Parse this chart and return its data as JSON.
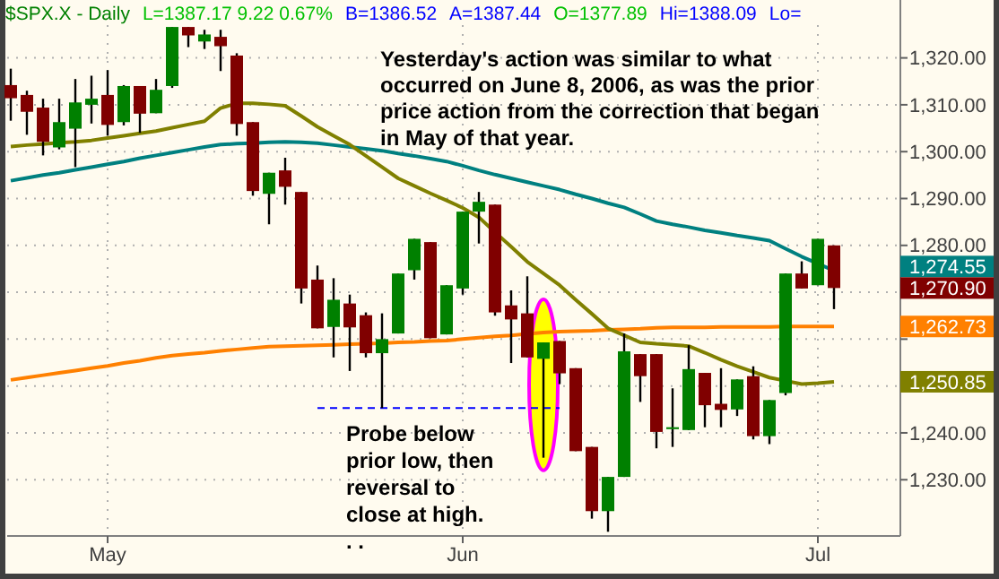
{
  "chart_data": {
    "type": "candlestick",
    "title": "$SPX.X - Daily",
    "categories": [
      null,
      null,
      null,
      null,
      null,
      null,
      "May",
      null,
      null,
      null,
      null,
      null,
      null,
      null,
      null,
      null,
      null,
      null,
      null,
      null,
      null,
      null,
      null,
      null,
      null,
      null,
      null,
      null,
      "Jun",
      null,
      null,
      null,
      null,
      null,
      null,
      null,
      null,
      null,
      null,
      null,
      null,
      null,
      null,
      null,
      null,
      null,
      null,
      null,
      null,
      null,
      "Jul",
      null
    ],
    "ohlc": [
      [
        1314.2,
        1317.7,
        1306.6,
        1311.4
      ],
      [
        1312.1,
        1313.0,
        1303.6,
        1308.5
      ],
      [
        1309.4,
        1311.3,
        1299.2,
        1302.1
      ],
      [
        1300.9,
        1311.3,
        1300.5,
        1306.3
      ],
      [
        1304.9,
        1315.5,
        1296.7,
        1310.5
      ],
      [
        1310.0,
        1316.2,
        1306.0,
        1311.3
      ],
      [
        1312.1,
        1317.4,
        1303.4,
        1305.7
      ],
      [
        1306.3,
        1314.2,
        1305.6,
        1314.0
      ],
      [
        1314.0,
        1314.0,
        1304.0,
        1308.1
      ],
      [
        1308.2,
        1315.5,
        1308.2,
        1313.2
      ],
      [
        1314.0,
        1326.6,
        1313.6,
        1326.6
      ],
      [
        1326.6,
        1326.6,
        1322.3,
        1324.8
      ],
      [
        1323.5,
        1326.0,
        1321.9,
        1325.0
      ],
      [
        1324.5,
        1326.0,
        1317.2,
        1322.5
      ],
      [
        1320.5,
        1321.0,
        1303.4,
        1305.9
      ],
      [
        1306.3,
        1306.3,
        1290.6,
        1291.6
      ],
      [
        1291.0,
        1295.5,
        1284.5,
        1295.5
      ],
      [
        1296.0,
        1298.7,
        1288.7,
        1292.5
      ],
      [
        1291.4,
        1291.4,
        1267.6,
        1270.8
      ],
      [
        1272.7,
        1275.7,
        1262.3,
        1262.3
      ],
      [
        1262.6,
        1273.0,
        1256.1,
        1268.4
      ],
      [
        1267.6,
        1269.5,
        1253.2,
        1262.5
      ],
      [
        1265.1,
        1265.7,
        1256.1,
        1257.0
      ],
      [
        1257.0,
        1265.5,
        1245.3,
        1260.0
      ],
      [
        1261.2,
        1274.0,
        1261.2,
        1274.0
      ],
      [
        1274.7,
        1281.4,
        1272.7,
        1281.4
      ],
      [
        1280.7,
        1280.7,
        1260.2,
        1260.2
      ],
      [
        1261.0,
        1271.5,
        1261.0,
        1271.5
      ],
      [
        1270.8,
        1287.2,
        1269.5,
        1287.2
      ],
      [
        1287.2,
        1291.4,
        1280.4,
        1289.3
      ],
      [
        1288.7,
        1288.7,
        1265.0,
        1265.7
      ],
      [
        1267.2,
        1270.4,
        1254.9,
        1264.2
      ],
      [
        1265.5,
        1273.4,
        1256.1,
        1256.1
      ],
      [
        1255.8,
        1259.3,
        1234.7,
        1259.3
      ],
      [
        1259.6,
        1259.6,
        1250.4,
        1252.7
      ],
      [
        1253.8,
        1253.8,
        1236.1,
        1236.1
      ],
      [
        1237.0,
        1237.0,
        1221.7,
        1223.3
      ],
      [
        1223.3,
        1230.6,
        1218.9,
        1230.6
      ],
      [
        1230.6,
        1261.2,
        1230.6,
        1257.4
      ],
      [
        1256.8,
        1256.8,
        1246.6,
        1252.1
      ],
      [
        1256.8,
        1256.8,
        1236.7,
        1240.2
      ],
      [
        1240.8,
        1249.5,
        1237.0,
        1241.2
      ],
      [
        1240.6,
        1258.7,
        1240.6,
        1253.6
      ],
      [
        1252.8,
        1252.8,
        1241.2,
        1245.9
      ],
      [
        1246.2,
        1253.8,
        1241.2,
        1244.9
      ],
      [
        1245.0,
        1251.4,
        1243.6,
        1251.4
      ],
      [
        1252.1,
        1254.2,
        1238.6,
        1239.3
      ],
      [
        1239.3,
        1247.0,
        1237.6,
        1247.0
      ],
      [
        1248.5,
        1274.0,
        1248.0,
        1274.0
      ],
      [
        1274.0,
        1276.6,
        1270.8,
        1270.8
      ],
      [
        1271.5,
        1281.4,
        1271.5,
        1281.4
      ],
      [
        1280.0,
        1280.0,
        1266.4,
        1270.9
      ]
    ],
    "colors": [
      "#800000",
      "#800000",
      "#800000",
      "#008000",
      "#008000",
      "#008000",
      "#800000",
      "#008000",
      "#800000",
      "#008000",
      "#008000",
      "#800000",
      "#008000",
      "#800000",
      "#800000",
      "#800000",
      "#008000",
      "#800000",
      "#800000",
      "#800000",
      "#008000",
      "#800000",
      "#800000",
      "#008000",
      "#008000",
      "#008000",
      "#800000",
      "#008000",
      "#008000",
      "#008000",
      "#800000",
      "#800000",
      "#800000",
      "#008000",
      "#800000",
      "#800000",
      "#800000",
      "#008000",
      "#008000",
      "#800000",
      "#800000",
      "#008000",
      "#008000",
      "#800000",
      "#800000",
      "#008000",
      "#800000",
      "#008000",
      "#008000",
      "#800000",
      "#008000",
      "#800000"
    ],
    "series": [
      {
        "type": "line",
        "color": "#008080",
        "values": [
          1293.8,
          1294.4,
          1295.0,
          1295.5,
          1296.1,
          1296.7,
          1297.3,
          1297.9,
          1298.6,
          1299.2,
          1299.8,
          1300.4,
          1301.0,
          1301.5,
          1301.7,
          1301.8,
          1302.0,
          1302.1,
          1302.0,
          1301.8,
          1301.4,
          1301.0,
          1300.6,
          1300.2,
          1299.6,
          1299.1,
          1298.5,
          1297.9,
          1297.0,
          1296.0,
          1295.1,
          1294.3,
          1293.5,
          1292.7,
          1291.9,
          1290.9,
          1290.0,
          1289.0,
          1288.1,
          1286.7,
          1285.2,
          1284.5,
          1283.9,
          1283.2,
          1282.7,
          1282.1,
          1281.6,
          1281.0,
          1279.3,
          1277.6,
          1276.1,
          1274.6
        ]
      },
      {
        "type": "line",
        "color": "#ff8000",
        "values": [
          1251.3,
          1251.8,
          1252.3,
          1252.8,
          1253.3,
          1253.8,
          1254.3,
          1254.9,
          1255.4,
          1256.0,
          1256.5,
          1256.8,
          1257.1,
          1257.5,
          1257.8,
          1258.1,
          1258.4,
          1258.5,
          1258.6,
          1258.7,
          1258.8,
          1258.9,
          1259.0,
          1259.1,
          1259.3,
          1259.4,
          1259.6,
          1259.7,
          1260.0,
          1260.3,
          1260.6,
          1260.8,
          1261.1,
          1261.4,
          1261.6,
          1261.7,
          1261.8,
          1262.0,
          1262.1,
          1262.2,
          1262.4,
          1262.5,
          1262.5,
          1262.5,
          1262.6,
          1262.6,
          1262.6,
          1262.6,
          1262.7,
          1262.7,
          1262.7,
          1262.7
        ]
      },
      {
        "type": "line",
        "color": "#808000",
        "values": [
          1301.1,
          1301.4,
          1301.6,
          1301.9,
          1302.1,
          1302.4,
          1302.9,
          1303.4,
          1303.9,
          1304.4,
          1305.1,
          1305.8,
          1306.5,
          1309.3,
          1310.3,
          1310.3,
          1310.1,
          1309.8,
          1307.6,
          1305.3,
          1303.4,
          1301.5,
          1299.1,
          1296.7,
          1294.3,
          1292.7,
          1291.1,
          1289.6,
          1288.0,
          1286.0,
          1282.8,
          1279.7,
          1276.5,
          1274.0,
          1271.5,
          1268.4,
          1265.4,
          1262.3,
          1260.8,
          1259.3,
          1259.0,
          1258.8,
          1258.5,
          1257.1,
          1255.6,
          1254.2,
          1253.0,
          1251.8,
          1251.1,
          1250.4,
          1250.6,
          1250.9
        ]
      },
      {
        "type": "line",
        "color": "#0000ff",
        "line_style": "dashed",
        "values": [
          null,
          null,
          null,
          null,
          null,
          null,
          null,
          null,
          null,
          null,
          null,
          null,
          null,
          null,
          null,
          null,
          null,
          null,
          null,
          1245.3,
          null,
          null,
          null,
          null,
          null,
          null,
          null,
          null,
          null,
          null,
          null,
          null,
          null,
          null,
          1245.3,
          null,
          null,
          null,
          null,
          null,
          null,
          null,
          null,
          null,
          null,
          null,
          null,
          null,
          null,
          null,
          null,
          null
        ]
      }
    ],
    "ylim": [
      1218,
      1327
    ],
    "yticks": [
      {
        "value": 1230,
        "label": "1,230.00"
      },
      {
        "value": 1240,
        "label": "1,240.00"
      },
      {
        "value": 1250,
        "label": null
      },
      {
        "value": 1260,
        "label": null
      },
      {
        "value": 1270,
        "label": null
      },
      {
        "value": 1280,
        "label": "1,280.00"
      },
      {
        "value": 1290,
        "label": "1,290.00"
      },
      {
        "value": 1300,
        "label": "1,300.00"
      },
      {
        "value": 1310,
        "label": "1,310.00"
      },
      {
        "value": 1320,
        "label": "1,320.00"
      }
    ],
    "grid": true,
    "annotations": [
      "L=1387.17 9.22 0.67%",
      "B=1386.52",
      "A=1387.44",
      "O=1377.89",
      "Hi=1388.09",
      "Lo=",
      "Yesterday's action was similar to what occurred on June 8, 2006, as was the prior price action from the correction that began in May of that year.",
      "Probe below prior low, then reversal to close at high. . .",
      "1,274.55",
      "1,270.90",
      "1,262.73",
      "1,250.85"
    ]
  }
}
